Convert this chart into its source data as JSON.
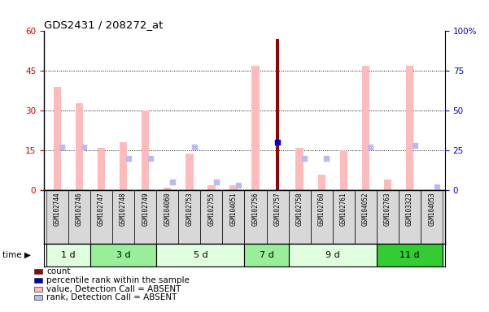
{
  "title": "GDS2431 / 208272_at",
  "samples": [
    "GSM102744",
    "GSM102746",
    "GSM102747",
    "GSM102748",
    "GSM102749",
    "GSM104060",
    "GSM102753",
    "GSM102755",
    "GSM104051",
    "GSM102756",
    "GSM102757",
    "GSM102758",
    "GSM102760",
    "GSM102761",
    "GSM104052",
    "GSM102763",
    "GSM103323",
    "GSM104053"
  ],
  "time_groups": [
    {
      "label": "1 d",
      "indices": [
        0,
        1
      ],
      "color": "#dfffdf"
    },
    {
      "label": "3 d",
      "indices": [
        2,
        3,
        4
      ],
      "color": "#99ee99"
    },
    {
      "label": "5 d",
      "indices": [
        5,
        6,
        7,
        8
      ],
      "color": "#dfffdf"
    },
    {
      "label": "7 d",
      "indices": [
        9,
        10
      ],
      "color": "#99ee99"
    },
    {
      "label": "9 d",
      "indices": [
        11,
        12,
        13,
        14
      ],
      "color": "#dfffdf"
    },
    {
      "label": "11 d",
      "indices": [
        15,
        16,
        17
      ],
      "color": "#33cc33"
    }
  ],
  "value_absent": [
    39,
    33,
    16,
    18,
    30,
    1,
    14,
    2,
    2,
    47,
    null,
    16,
    6,
    15,
    47,
    4,
    47,
    null
  ],
  "rank_absent": [
    27,
    27,
    null,
    20,
    20,
    5,
    27,
    5,
    3,
    null,
    null,
    20,
    20,
    null,
    27,
    null,
    28,
    2
  ],
  "count_value": [
    null,
    null,
    null,
    null,
    null,
    null,
    null,
    null,
    null,
    null,
    57,
    null,
    null,
    null,
    null,
    null,
    null,
    null
  ],
  "percentile_rank": [
    null,
    null,
    null,
    null,
    null,
    null,
    null,
    null,
    null,
    null,
    30,
    null,
    null,
    null,
    null,
    null,
    null,
    null
  ],
  "ylim_left": [
    0,
    60
  ],
  "ylim_right": [
    0,
    100
  ],
  "yticks_left": [
    0,
    15,
    30,
    45,
    60
  ],
  "yticks_right": [
    0,
    25,
    50,
    75,
    100
  ],
  "color_value_absent": "#ffbbbb",
  "color_rank_absent": "#bbbbee",
  "color_count": "#990000",
  "color_percentile": "#0000cc",
  "bg_color": "#ffffff",
  "tick_color_left": "#cc0000",
  "tick_color_right": "#0000cc",
  "legend_items": [
    {
      "color": "#990000",
      "label": "count"
    },
    {
      "color": "#0000cc",
      "label": "percentile rank within the sample"
    },
    {
      "color": "#ffbbbb",
      "label": "value, Detection Call = ABSENT"
    },
    {
      "color": "#bbbbee",
      "label": "rank, Detection Call = ABSENT"
    }
  ]
}
